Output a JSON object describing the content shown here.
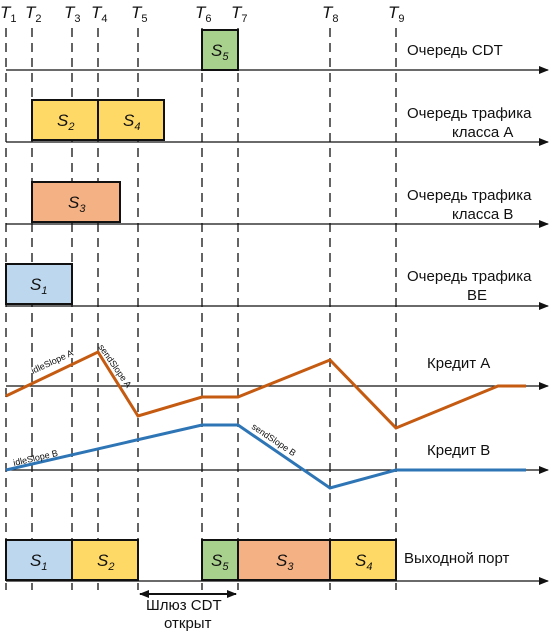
{
  "time_markers": [
    "1",
    "2",
    "3",
    "4",
    "5",
    "6",
    "7",
    "8",
    "9"
  ],
  "queues": {
    "cdt": "Очередь CDT",
    "class_a_1": "Очередь трафика",
    "class_a_2": "класса A",
    "class_b_1": "Очередь трафика",
    "class_b_2": "класса B",
    "be_1": "Очередь трафика",
    "be_2": "BE"
  },
  "credits": {
    "a_label": "Кредит A",
    "b_label": "Кредит B",
    "idle_a": "idleSlope A",
    "send_a": "sendSlope A",
    "idle_b": "idleSlope B",
    "send_b": "sendSlope B"
  },
  "output": {
    "label": "Выходной порт",
    "gate_1": "Шлюз CDT",
    "gate_2": "открыт"
  },
  "frame_letter": "S",
  "frames": {
    "s1": "1",
    "s2": "2",
    "s3": "3",
    "s4": "4",
    "s5": "5"
  },
  "colors": {
    "blue": "#bdd7ee",
    "yellow": "#ffd966",
    "orange": "#f4b183",
    "green": "#a9d18e",
    "credit_a": "#c55a11",
    "credit_b": "#2e75b6"
  }
}
